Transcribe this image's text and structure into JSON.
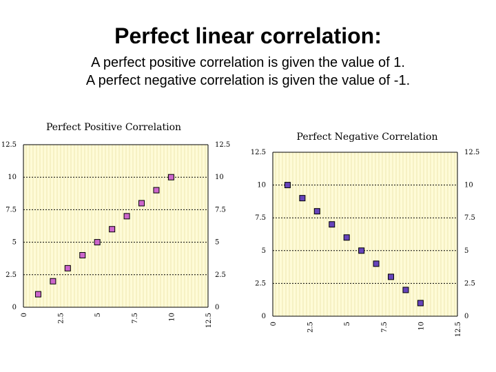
{
  "header": {
    "title": "Perfect linear correlation:",
    "line1": "A perfect positive correlation is given the value of 1.",
    "line2": "A perfect negative correlation is given the value of -1."
  },
  "chart_data": [
    {
      "type": "scatter",
      "title": "Perfect Positive Correlation",
      "xlabel": "",
      "ylabel": "",
      "xlim": [
        0,
        12.5
      ],
      "ylim": [
        0,
        12.5
      ],
      "x_ticks": [
        "0",
        "2.5",
        "5",
        "7.5",
        "10",
        "12.5"
      ],
      "y_ticks": [
        "0",
        "2.5",
        "5",
        "7.5",
        "10",
        "12.5"
      ],
      "grid": "horizontal dotted",
      "background_color": "#fefbd7",
      "marker_color": "#cc66cc",
      "x": [
        1,
        2,
        3,
        4,
        5,
        6,
        7,
        8,
        9,
        10
      ],
      "y": [
        1,
        2,
        3,
        4,
        5,
        6,
        7,
        8,
        9,
        10
      ]
    },
    {
      "type": "scatter",
      "title": "Perfect Negative Correlation",
      "xlabel": "",
      "ylabel": "",
      "xlim": [
        0,
        12.5
      ],
      "ylim": [
        0,
        12.5
      ],
      "x_ticks": [
        "0",
        "2.5",
        "5",
        "7.5",
        "10",
        "12.5"
      ],
      "y_ticks": [
        "0",
        "2.5",
        "5",
        "7.5",
        "10",
        "12.5"
      ],
      "grid": "horizontal dotted",
      "background_color": "#fefbd7",
      "marker_color": "#6644bb",
      "x": [
        1,
        2,
        3,
        4,
        5,
        6,
        7,
        8,
        9,
        10
      ],
      "y": [
        10,
        9,
        8,
        7,
        6,
        5,
        4,
        3,
        2,
        1
      ]
    }
  ]
}
